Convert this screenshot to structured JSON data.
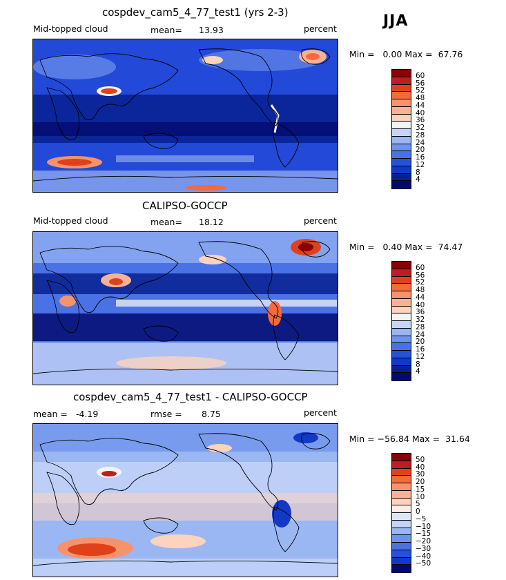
{
  "season": "JJA",
  "panels": [
    {
      "title": "cospdev_cam5_4_77_test1 (yrs 2-3)",
      "left_label": "Mid-topped cloud",
      "stat_label": "mean=",
      "stat_value": "13.93",
      "right_label": "percent",
      "minmax": "Min =   0.00 Max =  67.76",
      "ticks": [
        "60",
        "56",
        "52",
        "48",
        "44",
        "40",
        "36",
        "32",
        "28",
        "24",
        "20",
        "16",
        "12",
        "8",
        "4"
      ],
      "colors": [
        "#8b0000",
        "#b81f1f",
        "#e0411a",
        "#f46a3c",
        "#f7936b",
        "#f9b296",
        "#fcd3bd",
        "#f4f4f4",
        "#c5d5f7",
        "#9bb7f2",
        "#6f93eb",
        "#4a72e6",
        "#2550dc",
        "#1238c8",
        "#07208f",
        "#020a6e"
      ]
    },
    {
      "title": "CALIPSO-GOCCP",
      "left_label": "Mid-topped cloud",
      "stat_label": "mean=",
      "stat_value": "18.12",
      "right_label": "percent",
      "minmax": "Min =   0.40 Max =  74.47",
      "ticks": [
        "60",
        "56",
        "52",
        "48",
        "44",
        "40",
        "36",
        "32",
        "28",
        "24",
        "20",
        "16",
        "12",
        "8",
        "4"
      ],
      "colors": [
        "#8b0000",
        "#b81f1f",
        "#e0411a",
        "#f46a3c",
        "#f7936b",
        "#f9b296",
        "#fcd3bd",
        "#f4f4f4",
        "#c5d5f7",
        "#9bb7f2",
        "#6f93eb",
        "#4a72e6",
        "#2550dc",
        "#1238c8",
        "#07208f",
        "#020a6e"
      ]
    },
    {
      "title": "cospdev_cam5_4_77_test1 - CALIPSO-GOCCP",
      "left_label": "mean =",
      "left_value": "-4.19",
      "stat_label": "rmse =",
      "stat_value": "8.75",
      "right_label": "percent",
      "minmax": "Min = −56.84 Max =  31.64",
      "ticks": [
        "50",
        "40",
        "30",
        "20",
        "15",
        "10",
        "5",
        "0",
        "−5",
        "−10",
        "−15",
        "−20",
        "−30",
        "−40",
        "−50"
      ],
      "colors": [
        "#8b0000",
        "#b81f1f",
        "#e0411a",
        "#f46a3c",
        "#f7936b",
        "#f9b296",
        "#fcd3bd",
        "#fdeee5",
        "#dde7f9",
        "#c5d5f7",
        "#9bb7f2",
        "#6f93eb",
        "#4a72e6",
        "#2550dc",
        "#1238c8",
        "#020a6e"
      ]
    }
  ]
}
